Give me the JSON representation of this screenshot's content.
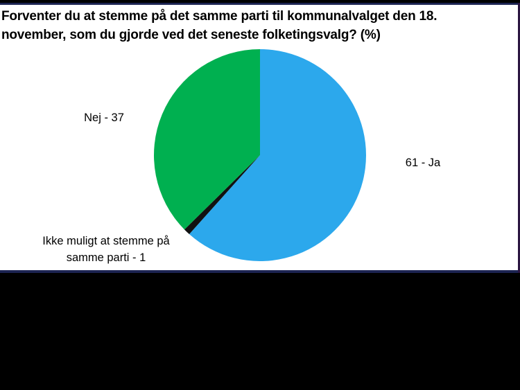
{
  "chart_data": {
    "type": "pie",
    "title": "Forventer du at stemme på det samme parti til kommunalvalget den 18. november, som du gjorde ved det seneste folketingsvalg? (%)",
    "unit": "%",
    "start_angle": "12 o'clock, clockwise",
    "slices": [
      {
        "name": "Ja",
        "value": 61,
        "color": "#2CA8EC",
        "label": "61 - Ja"
      },
      {
        "name": "Ikke muligt at stemme på samme parti",
        "value": 1,
        "color": "#111111",
        "label": "Ikke muligt at stemme på samme parti - 1"
      },
      {
        "name": "Nej",
        "value": 37,
        "color": "#00B050",
        "label": "Nej - 37"
      }
    ],
    "legend": "none (data labels beside slices)"
  },
  "title": {
    "line1": "Forventer du at stemme på det samme parti til kommunalvalget den 18.",
    "line2": "november, som du gjorde ved det seneste folketingsvalg? (%)"
  },
  "labels": {
    "nej": "Nej - 37",
    "ja": "61 - Ja",
    "ikke_line1": "Ikke muligt at stemme på",
    "ikke_line2": "samme parti - 1"
  },
  "colors": {
    "ja": "#2CA8EC",
    "ikke": "#111111",
    "nej": "#00B050",
    "rule": "#1c2452"
  }
}
